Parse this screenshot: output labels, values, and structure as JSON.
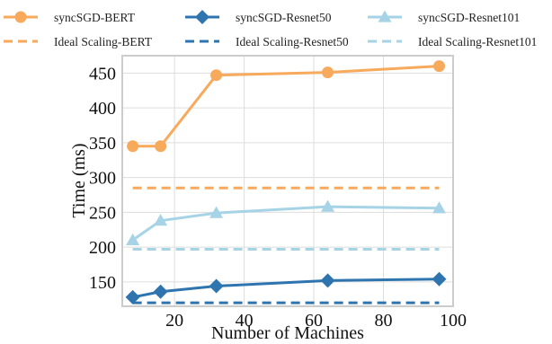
{
  "chart_data": {
    "type": "line",
    "xlabel": "Number of Machines",
    "ylabel": "Time (ms)",
    "xlim": [
      5,
      100
    ],
    "ylim": [
      115,
      475
    ],
    "xticks": [
      20,
      40,
      60,
      80,
      100
    ],
    "yticks": [
      150,
      200,
      250,
      300,
      350,
      400,
      450
    ],
    "grid": true,
    "legend_position": "top",
    "series": [
      {
        "name": "syncSGD-BERT",
        "style": "solid",
        "marker": "circle",
        "color": "#f7a95c",
        "x": [
          8,
          16,
          32,
          64,
          96
        ],
        "y": [
          345,
          345,
          447,
          451,
          460
        ]
      },
      {
        "name": "syncSGD-Resnet50",
        "style": "solid",
        "marker": "diamond",
        "color": "#2e75b0",
        "x": [
          8,
          16,
          32,
          64,
          96
        ],
        "y": [
          128,
          136,
          144,
          152,
          154
        ]
      },
      {
        "name": "syncSGD-Resnet101",
        "style": "solid",
        "marker": "triangle",
        "color": "#a6d3e6",
        "x": [
          8,
          16,
          32,
          64,
          96
        ],
        "y": [
          210,
          238,
          249,
          258,
          256
        ]
      },
      {
        "name": "Ideal Scaling-BERT",
        "style": "dashed",
        "marker": "none",
        "color": "#f7a95c",
        "x": [
          8,
          96
        ],
        "y": [
          285,
          285
        ]
      },
      {
        "name": "Ideal Scaling-Resnet50",
        "style": "dashed",
        "marker": "none",
        "color": "#2e75b0",
        "x": [
          8,
          96
        ],
        "y": [
          120,
          120
        ]
      },
      {
        "name": "Ideal Scaling-Resnet101",
        "style": "dashed",
        "marker": "none",
        "color": "#a6d3e6",
        "x": [
          8,
          96
        ],
        "y": [
          197,
          197
        ]
      }
    ]
  }
}
